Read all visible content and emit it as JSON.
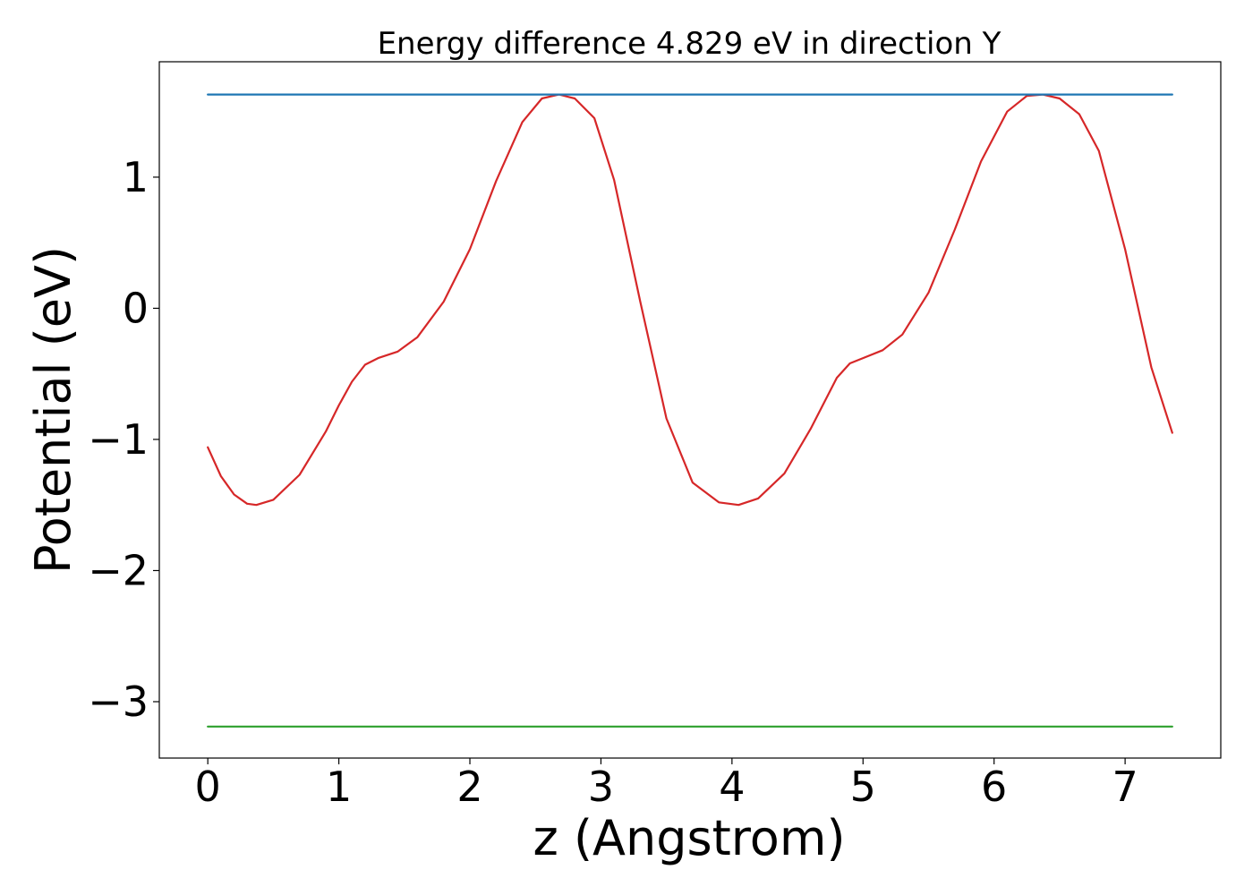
{
  "chart_data": {
    "type": "line",
    "title": "Energy difference 4.829 eV in direction Y",
    "xlabel": "z (Angstrom)",
    "ylabel": "Potential (eV)",
    "xlim": [
      -0.37,
      7.73
    ],
    "ylim": [
      -3.43,
      1.88
    ],
    "xticks": [
      0,
      1,
      2,
      3,
      4,
      5,
      6,
      7
    ],
    "xtick_labels": [
      "0",
      "1",
      "2",
      "3",
      "4",
      "5",
      "6",
      "7"
    ],
    "yticks": [
      1,
      0,
      -1,
      -2,
      -3
    ],
    "ytick_labels": [
      "1",
      "0",
      "−1",
      "−2",
      "−3"
    ],
    "grid": false,
    "legend": "none",
    "colors": {
      "potential": "#d62728",
      "upper": "#1f77b4",
      "lower": "#2ca02c"
    },
    "series": [
      {
        "id": "potential",
        "x": [
          0,
          0.1,
          0.2,
          0.3,
          0.37,
          0.5,
          0.7,
          0.9,
          1.0,
          1.1,
          1.2,
          1.3,
          1.45,
          1.6,
          1.8,
          2.0,
          2.2,
          2.4,
          2.55,
          2.68,
          2.8,
          2.95,
          3.1,
          3.3,
          3.5,
          3.7,
          3.9,
          4.05,
          4.2,
          4.4,
          4.6,
          4.8,
          4.9,
          5.0,
          5.15,
          5.3,
          5.5,
          5.7,
          5.9,
          6.1,
          6.25,
          6.37,
          6.5,
          6.65,
          6.8,
          7.0,
          7.2,
          7.36
        ],
        "y": [
          -1.06,
          -1.28,
          -1.42,
          -1.49,
          -1.5,
          -1.46,
          -1.27,
          -0.94,
          -0.74,
          -0.56,
          -0.43,
          -0.38,
          -0.33,
          -0.22,
          0.05,
          0.45,
          0.97,
          1.42,
          1.6,
          1.63,
          1.6,
          1.45,
          0.98,
          0.05,
          -0.84,
          -1.33,
          -1.48,
          -1.5,
          -1.45,
          -1.26,
          -0.92,
          -0.53,
          -0.42,
          -0.38,
          -0.32,
          -0.2,
          0.12,
          0.6,
          1.12,
          1.5,
          1.62,
          1.63,
          1.6,
          1.48,
          1.2,
          0.45,
          -0.45,
          -0.95
        ]
      },
      {
        "id": "upper",
        "x": [
          0,
          7.36
        ],
        "y": [
          1.63,
          1.63
        ]
      },
      {
        "id": "lower",
        "x": [
          0,
          7.36
        ],
        "y": [
          -3.19,
          -3.19
        ]
      }
    ]
  }
}
